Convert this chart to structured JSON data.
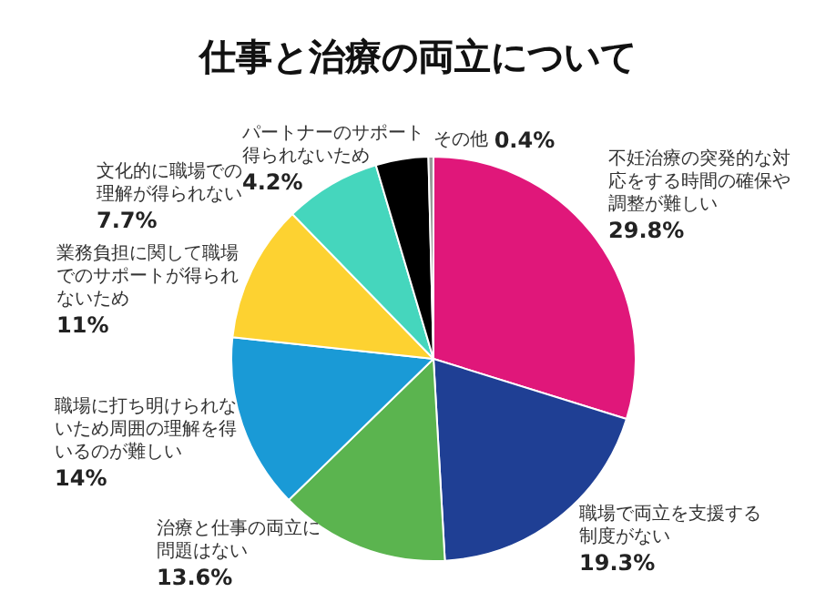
{
  "chart_data": {
    "type": "pie",
    "title": "仕事と治療の両立について",
    "categories": [
      "不妊治療の突発的な対応をする時間の確保や調整が難しい",
      "職場で両立を支援する制度がない",
      "治療と仕事の両立に問題はない",
      "職場に打ち明けられないため周囲の理解を得いるのが難しい",
      "業務負担に関して職場でのサポートが得られないため",
      "文化的に職場での理解が得られない",
      "パートナーのサポート得られないため",
      "その他"
    ],
    "values": [
      29.8,
      19.3,
      13.6,
      14,
      11,
      7.7,
      4.2,
      0.4
    ],
    "value_labels": [
      "29.8%",
      "19.3%",
      "13.6%",
      "14%",
      "11%",
      "7.7%",
      "4.2%",
      "0.4%"
    ],
    "colors": [
      "#e0177a",
      "#1f3f94",
      "#5bb44f",
      "#1a9ad6",
      "#fdd231",
      "#45d6bd",
      "#000000",
      "#9a9a9a"
    ],
    "legend": false
  }
}
